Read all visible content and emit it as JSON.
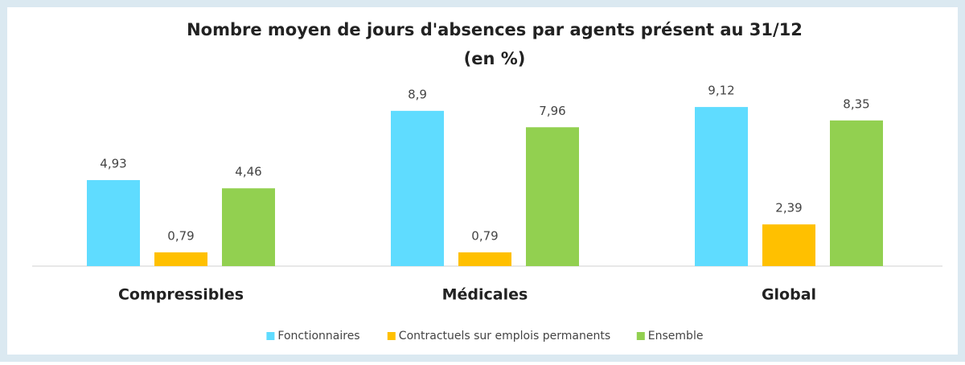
{
  "chart_data": {
    "type": "bar",
    "title": "Nombre moyen de jours d'absences par agents présent au 31/12",
    "subtitle": "(en %)",
    "categories": [
      "Compressibles",
      "Médicales",
      "Global"
    ],
    "series": [
      {
        "name": "Fonctionnaires",
        "color": "#5fdcff",
        "values": [
          4.93,
          8.9,
          9.12
        ],
        "value_labels": [
          "4,93",
          "8,9",
          "9,12"
        ]
      },
      {
        "name": "Contractuels sur emplois permanents",
        "color": "#ffc000",
        "values": [
          0.79,
          0.79,
          2.39
        ],
        "value_labels": [
          "0,79",
          "0,79",
          "2,39"
        ]
      },
      {
        "name": "Ensemble",
        "color": "#92d050",
        "values": [
          4.46,
          7.96,
          8.35
        ],
        "value_labels": [
          "4,46",
          "7,96",
          "8,35"
        ]
      }
    ],
    "legend": "bottom"
  }
}
